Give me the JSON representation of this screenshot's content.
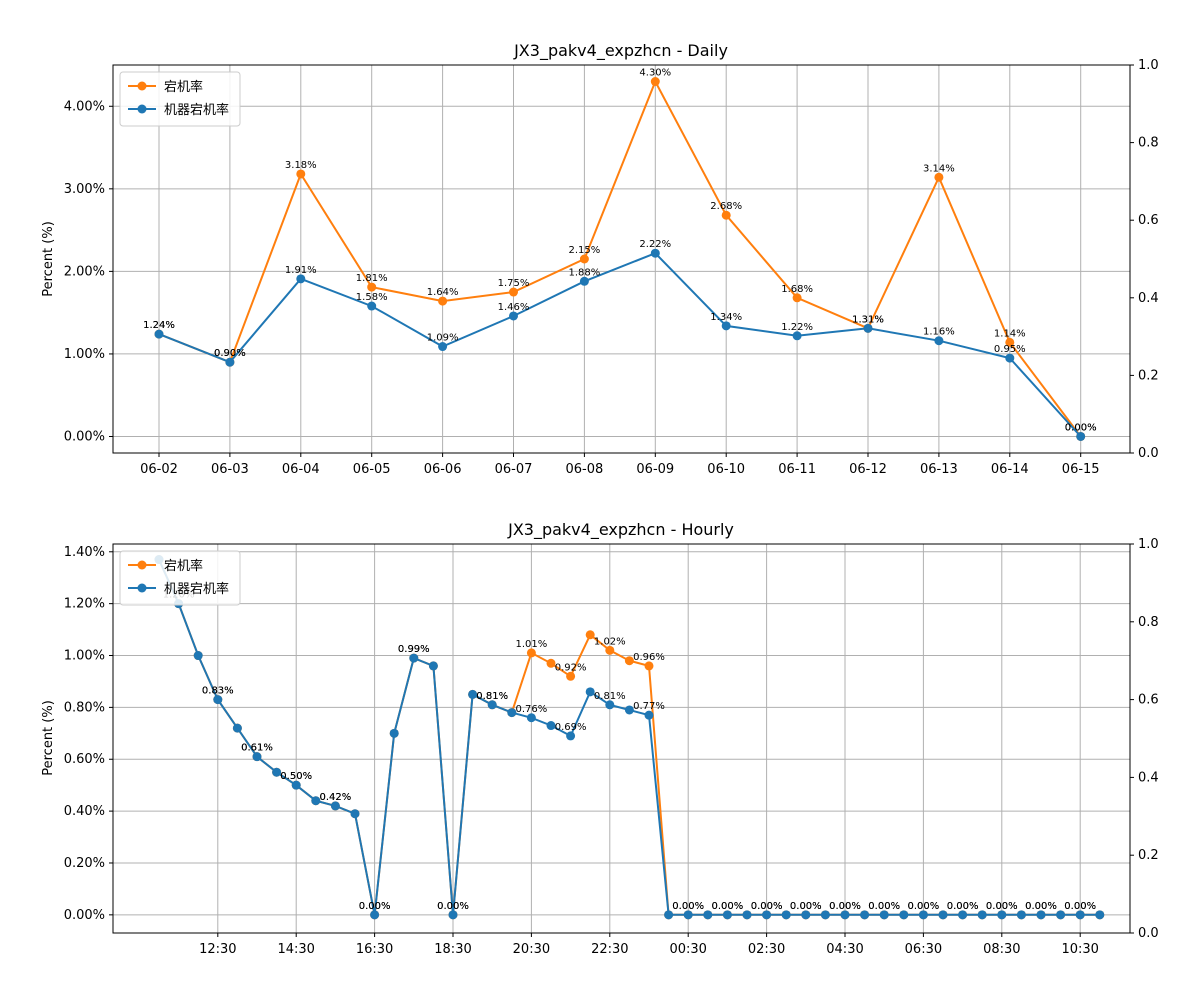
{
  "colors": {
    "downtime": "#ff7f0e",
    "machine": "#1f77b4",
    "grid": "#b0b0b0"
  },
  "charts": [
    {
      "id": "daily",
      "title": "JX3_pakv4_expzhcn - Daily",
      "ylabel": "Percent (%)",
      "yticks": [
        "0.00%",
        "1.00%",
        "2.00%",
        "3.00%",
        "4.00%"
      ],
      "y2ticks": [
        "0.0",
        "0.2",
        "0.4",
        "0.6",
        "0.8",
        "1.0"
      ]
    },
    {
      "id": "hourly",
      "title": "JX3_pakv4_expzhcn - Hourly",
      "ylabel": "Percent (%)",
      "yticks": [
        "0.00%",
        "0.20%",
        "0.40%",
        "0.60%",
        "0.80%",
        "1.00%",
        "1.20%",
        "1.40%"
      ],
      "y2ticks": [
        "0.0",
        "0.2",
        "0.4",
        "0.6",
        "0.8",
        "1.0"
      ]
    }
  ],
  "chart_data": [
    {
      "type": "line",
      "title": "JX3_pakv4_expzhcn - Daily",
      "ylabel": "Percent (%)",
      "ylim": [
        -0.2,
        4.5
      ],
      "y2lim": [
        0,
        1
      ],
      "grid": true,
      "legend": "top-left",
      "categories": [
        "06-02",
        "06-03",
        "06-04",
        "06-05",
        "06-06",
        "06-07",
        "06-08",
        "06-09",
        "06-10",
        "06-11",
        "06-12",
        "06-13",
        "06-14",
        "06-15"
      ],
      "series": [
        {
          "name": "宕机率",
          "values": [
            1.24,
            0.9,
            3.18,
            1.81,
            1.64,
            1.75,
            2.15,
            4.3,
            2.68,
            1.68,
            1.31,
            3.14,
            1.14,
            0.0
          ],
          "labels": [
            "1.24%",
            "0.90%",
            "3.18%",
            "1.81%",
            "1.64%",
            "1.75%",
            "2.15%",
            "4.30%",
            "2.68%",
            "1.68%",
            "1.31%",
            "3.14%",
            "1.14%",
            "0.00%"
          ]
        },
        {
          "name": "机器宕机率",
          "values": [
            1.24,
            0.9,
            1.91,
            1.58,
            1.09,
            1.46,
            1.88,
            2.22,
            1.34,
            1.22,
            1.31,
            1.16,
            0.95,
            0.0
          ],
          "labels": [
            "1.24%",
            "0.90%",
            "1.91%",
            "1.58%",
            "1.09%",
            "1.46%",
            "1.88%",
            "2.22%",
            "1.34%",
            "1.22%",
            "1.31%",
            "1.16%",
            "0.95%",
            "0.00%"
          ]
        }
      ]
    },
    {
      "type": "line",
      "title": "JX3_pakv4_expzhcn - Hourly",
      "ylabel": "Percent (%)",
      "ylim": [
        -0.07,
        1.43
      ],
      "y2lim": [
        0,
        1
      ],
      "grid": true,
      "legend": "top-left",
      "x_ticks": [
        "12:30",
        "14:30",
        "16:30",
        "18:30",
        "20:30",
        "22:30",
        "00:30",
        "02:30",
        "04:30",
        "06:30",
        "08:30",
        "10:30"
      ],
      "x_tick_index": [
        3,
        7,
        11,
        15,
        19,
        23,
        27,
        31,
        35,
        39,
        43,
        47
      ],
      "series": [
        {
          "name": "宕机率",
          "values": [
            1.37,
            1.2,
            1.0,
            0.83,
            0.72,
            0.61,
            0.55,
            0.5,
            0.44,
            0.42,
            0.39,
            0.0,
            0.7,
            0.99,
            0.96,
            0.0,
            0.85,
            0.81,
            0.78,
            1.01,
            0.97,
            0.92,
            1.08,
            1.02,
            0.98,
            0.96,
            0,
            0,
            0,
            0,
            0,
            0,
            0,
            0,
            0,
            0,
            0,
            0,
            0,
            0,
            0,
            0,
            0,
            0,
            0,
            0,
            0,
            0,
            0
          ],
          "labels": {
            "3": "0.83%",
            "5": "0.61%",
            "7": "0.50%",
            "9": "0.42%",
            "11": "0.00%",
            "13": "0.99%",
            "15": "0.00%",
            "17": "0.81%",
            "19": "1.01%",
            "21": "0.92%",
            "23": "1.02%",
            "25": "0.96%",
            "27": "0.00%",
            "29": "0.00%",
            "31": "0.00%",
            "33": "0.00%",
            "35": "0.00%",
            "37": "0.00%",
            "39": "0.00%",
            "41": "0.00%",
            "43": "0.00%",
            "45": "0.00%",
            "47": "0.00%"
          }
        },
        {
          "name": "机器宕机率",
          "values": [
            1.37,
            1.2,
            1.0,
            0.83,
            0.72,
            0.61,
            0.55,
            0.5,
            0.44,
            0.42,
            0.39,
            0.0,
            0.7,
            0.99,
            0.96,
            0.0,
            0.85,
            0.81,
            0.78,
            0.76,
            0.73,
            0.69,
            0.86,
            0.81,
            0.79,
            0.77,
            0,
            0,
            0,
            0,
            0,
            0,
            0,
            0,
            0,
            0,
            0,
            0,
            0,
            0,
            0,
            0,
            0,
            0,
            0,
            0,
            0,
            0,
            0
          ],
          "labels": {
            "1": "1.20%",
            "3": "0.83%",
            "5": "0.61%",
            "7": "0.50%",
            "9": "0.42%",
            "11": "0.00%",
            "13": "0.99%",
            "15": "0.00%",
            "17": "0.81%",
            "19": "0.76%",
            "21": "0.69%",
            "23": "0.81%",
            "25": "0.77%",
            "27": "0.00%",
            "29": "0.00%",
            "31": "0.00%",
            "33": "0.00%",
            "35": "0.00%",
            "37": "0.00%",
            "39": "0.00%",
            "41": "0.00%",
            "43": "0.00%",
            "45": "0.00%",
            "47": "0.00%"
          }
        }
      ]
    }
  ]
}
